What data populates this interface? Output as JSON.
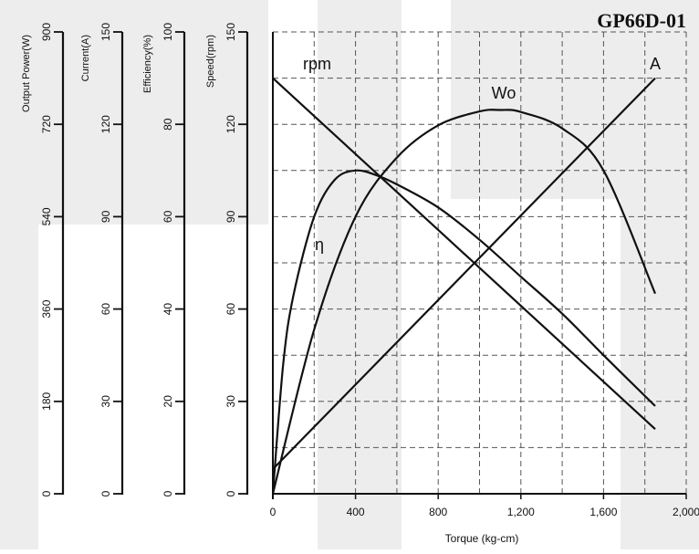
{
  "chart_data": {
    "type": "line",
    "title": "GP66D-01",
    "xlabel": "Torque (kg-cm)",
    "x_ticks": [
      "0",
      "400",
      "800",
      "1,200",
      "1,600",
      "2,000"
    ],
    "xlim": [
      0,
      2000
    ],
    "y_axes": [
      {
        "label": "Output Power(W)",
        "ticks": [
          "0",
          "180",
          "360",
          "540",
          "720",
          "900"
        ],
        "range": [
          0,
          900
        ]
      },
      {
        "label": "Current(A)",
        "ticks": [
          "0",
          "30",
          "60",
          "90",
          "120",
          "150"
        ],
        "range": [
          0,
          150
        ]
      },
      {
        "label": "Efficiency(%)",
        "ticks": [
          "0",
          "20",
          "40",
          "60",
          "80",
          "100"
        ],
        "range": [
          0,
          100
        ]
      },
      {
        "label": "Speed(rpm)",
        "ticks": [
          "0",
          "30",
          "60",
          "90",
          "120",
          "150"
        ],
        "range": [
          0,
          150
        ]
      }
    ],
    "grid": true,
    "series": [
      {
        "name": "rpm",
        "axis": 3,
        "x": [
          0,
          1850
        ],
        "y": [
          135,
          21
        ]
      },
      {
        "name": "A",
        "axis": 1,
        "x": [
          0,
          1850
        ],
        "y": [
          8,
          135
        ]
      },
      {
        "name": "Wo",
        "axis": 0,
        "x": [
          0,
          200,
          400,
          600,
          800,
          1000,
          1100,
          1200,
          1400,
          1600,
          1850
        ],
        "y": [
          0,
          320,
          540,
          655,
          718,
          745,
          748,
          744,
          712,
          630,
          390
        ]
      },
      {
        "name": "η",
        "axis": 2,
        "x": [
          0,
          50,
          100,
          200,
          300,
          400,
          500,
          600,
          800,
          1000,
          1200,
          1400,
          1600,
          1850
        ],
        "y": [
          0,
          28,
          43,
          60,
          68,
          70,
          69,
          67,
          62,
          55,
          47,
          39,
          30,
          19
        ]
      }
    ]
  }
}
